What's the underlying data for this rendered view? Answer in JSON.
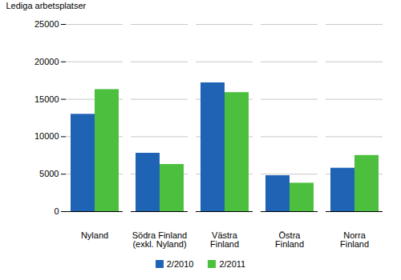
{
  "chart_data": {
    "type": "bar",
    "y_label": "Lediga arbetsplatser",
    "categories": [
      "Nyland",
      "Södra Finland\n(exkl. Nyland)",
      "Västra\nFinland",
      "Östra\nFinland",
      "Norra\nFinland"
    ],
    "series": [
      {
        "name": "2/2010",
        "color": "#1f64b4",
        "values": [
          13000,
          7800,
          17200,
          4800,
          5800
        ]
      },
      {
        "name": "2/2011",
        "color": "#4cbf3f",
        "values": [
          16300,
          6300,
          15900,
          3800,
          7500
        ]
      }
    ],
    "ylim": [
      0,
      25000
    ],
    "yticks": [
      0,
      5000,
      10000,
      15000,
      20000,
      25000
    ],
    "grid": true,
    "legend": "bottom"
  }
}
